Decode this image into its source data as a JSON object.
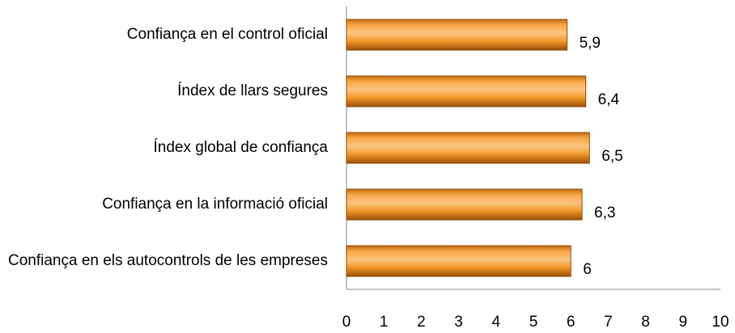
{
  "chart_data": {
    "type": "bar",
    "orientation": "horizontal",
    "categories": [
      "Confiança en el control oficial",
      "Índex de llars segures",
      "Índex global de confiança",
      "Confiança en la informació oficial",
      "Confiança en els autocontrols de les empreses"
    ],
    "values": [
      5.9,
      6.4,
      6.5,
      6.3,
      6
    ],
    "value_labels": [
      "5,9",
      "6,4",
      "6,5",
      "6,3",
      "6"
    ],
    "color": "#f39a2c",
    "xlim": [
      0,
      10
    ],
    "xticks": [
      0,
      1,
      2,
      3,
      4,
      5,
      6,
      7,
      8,
      9,
      10
    ],
    "grid": false
  }
}
